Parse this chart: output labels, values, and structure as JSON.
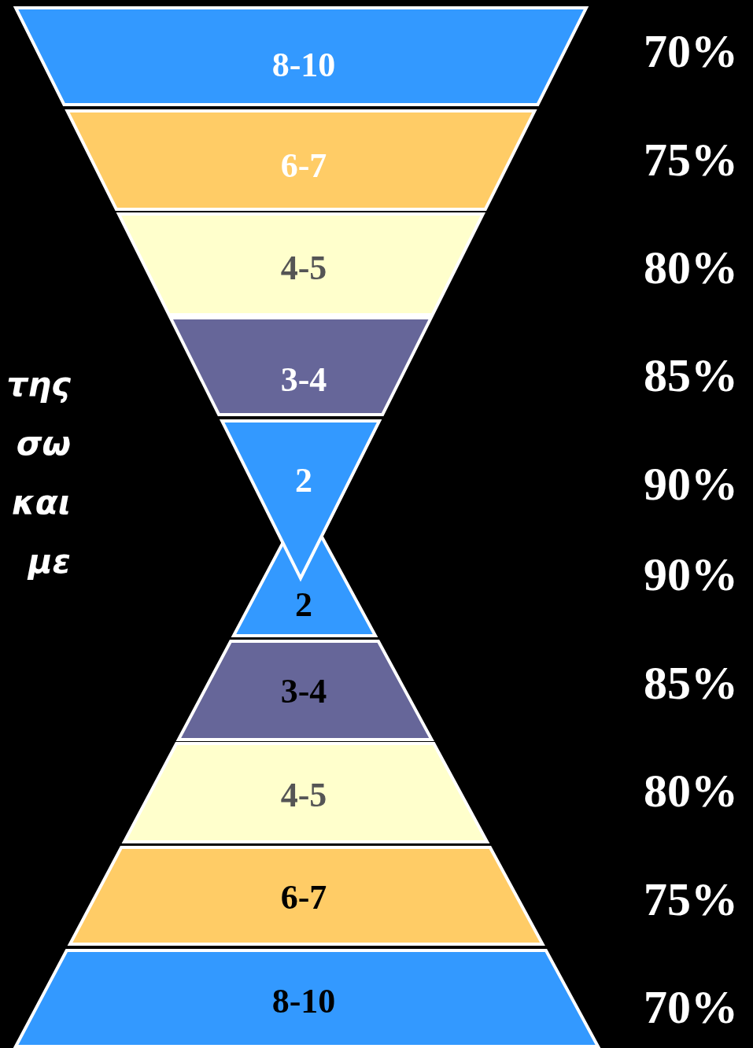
{
  "chart_data": [
    {
      "type": "other",
      "categories": [
        "8-10",
        "6-7",
        "4-5",
        "3-4",
        "2"
      ],
      "values": [
        70,
        75,
        80,
        85,
        90
      ],
      "value_labels": [
        "70%",
        "75%",
        "80%",
        "85%",
        "90%"
      ],
      "colors": [
        "#3399ff",
        "#ffcc66",
        "#ffffcc",
        "#666699",
        "#3399ff"
      ],
      "annotations": [
        "της",
        "σω",
        "και",
        "με"
      ]
    },
    {
      "type": "other",
      "categories": [
        "2",
        "3-4",
        "4-5",
        "6-7",
        "8-10"
      ],
      "values": [
        90,
        85,
        80,
        75,
        70
      ],
      "value_labels": [
        "90%",
        "85%",
        "80%",
        "75%",
        "70%"
      ],
      "colors": [
        "#3399ff",
        "#666699",
        "#ffffcc",
        "#ffcc66",
        "#3399ff"
      ]
    }
  ]
}
